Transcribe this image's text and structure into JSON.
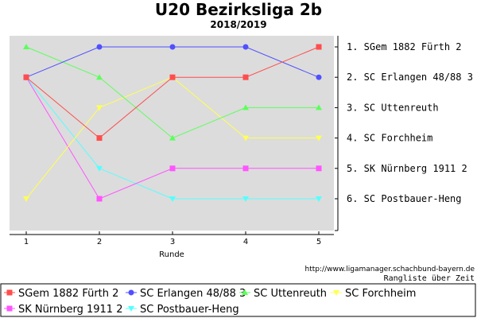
{
  "chart_data": {
    "type": "line",
    "title": "U20 Bezirksliga 2b",
    "subtitle": "2018/2019",
    "xlabel": "Runde",
    "ylabel": "",
    "x": [
      1,
      2,
      3,
      4,
      5
    ],
    "ylim": [
      6,
      1
    ],
    "grid": false,
    "legend_position": "bottom",
    "series": [
      {
        "name": "SGem 1882 Fürth 2",
        "rank_label": "1. SGem 1882 Fürth 2",
        "color": "#ff4d4d",
        "marker": "square",
        "values": [
          2,
          4,
          2,
          2,
          1
        ]
      },
      {
        "name": "SC Erlangen 48/88 3",
        "rank_label": "2. SC Erlangen 48/88 3",
        "color": "#5050ff",
        "marker": "circle",
        "values": [
          2,
          1,
          1,
          1,
          2
        ]
      },
      {
        "name": "SC Uttenreuth",
        "rank_label": "3. SC Uttenreuth",
        "color": "#5cff5c",
        "marker": "triangle-up",
        "values": [
          1,
          2,
          4,
          3,
          3
        ]
      },
      {
        "name": "SC Forchheim",
        "rank_label": "4. SC Forchheim",
        "color": "#ffff55",
        "marker": "triangle-down",
        "values": [
          6,
          3,
          2,
          4,
          4
        ]
      },
      {
        "name": "SK Nürnberg 1911 2",
        "rank_label": "5. SK Nürnberg 1911 2",
        "color": "#ff55ff",
        "marker": "square",
        "values": [
          2,
          6,
          5,
          5,
          5
        ]
      },
      {
        "name": "SC Postbauer-Heng",
        "rank_label": "6. SC Postbauer-Heng",
        "color": "#55ffff",
        "marker": "triangle-down",
        "values": [
          2,
          5,
          6,
          6,
          6
        ]
      }
    ]
  },
  "footer": {
    "url": "http://www.ligamanager.schachbund-bayern.de",
    "caption": "Rangliste über Zeit"
  }
}
